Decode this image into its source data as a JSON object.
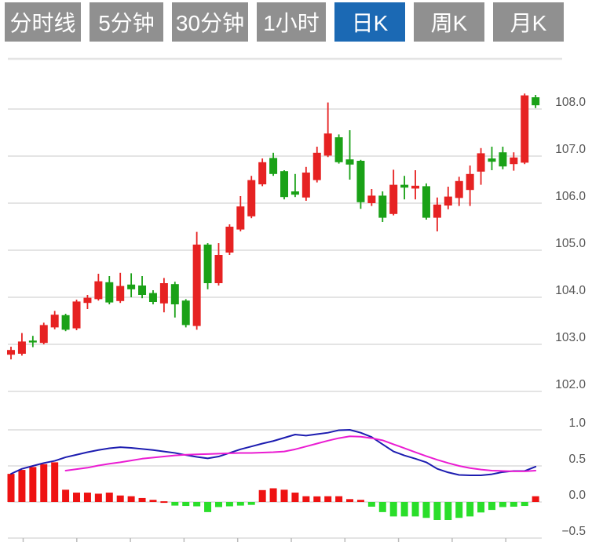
{
  "tabs": {
    "active_bg": "#1b69b4",
    "inactive_bg": "#909090",
    "text_color": "#ffffff",
    "items": [
      {
        "label": "分时线",
        "name": "tab-timeshare",
        "active": false,
        "width": 97
      },
      {
        "label": "5分钟",
        "name": "tab-5min",
        "active": false,
        "width": 94
      },
      {
        "label": "30分钟",
        "name": "tab-30min",
        "active": false,
        "width": 97
      },
      {
        "label": "1小时",
        "name": "tab-1hour",
        "active": false,
        "width": 88
      },
      {
        "label": "日K",
        "name": "tab-daily-k",
        "active": true,
        "width": 90
      },
      {
        "label": "周K",
        "name": "tab-weekly-k",
        "active": false,
        "width": 90
      },
      {
        "label": "月K",
        "name": "tab-monthly-k",
        "active": false,
        "width": 90
      }
    ]
  },
  "chart_data": {
    "type": "candlestick",
    "panels": [
      "price",
      "macd"
    ],
    "grid": true,
    "legend": "none",
    "axis_side": "right",
    "colors": {
      "up": "#e62222",
      "down": "#1aa117",
      "hist_up": "#ee1212",
      "hist_down": "#2ade2a",
      "dif_line": "#1c1cb0",
      "dea_line": "#ea1cd2",
      "grid_line": "#dcdcdc",
      "axis_label": "#555555"
    },
    "price_axis": {
      "min": 101.9,
      "max": 109.1,
      "tick_values": [
        108.0,
        107.0,
        106.0,
        105.0,
        104.0,
        103.0,
        102.0
      ],
      "tick_labels": [
        "108.0",
        "107.0",
        "106.0",
        "105.0",
        "104.0",
        "103.0",
        "102.0"
      ]
    },
    "macd_axis": {
      "min": -0.5,
      "max": 1.0,
      "tick_values": [
        1.0,
        0.5,
        0.0,
        -0.5
      ],
      "tick_labels": [
        "1.0",
        "0.5",
        "0.0",
        "−0.5"
      ]
    },
    "x_axis": {
      "labels_visible": false,
      "tick_count": 10
    },
    "candles_ohlc": [
      [
        102.78,
        102.95,
        102.68,
        102.88
      ],
      [
        102.8,
        103.24,
        102.76,
        103.06
      ],
      [
        103.08,
        103.18,
        102.94,
        103.04
      ],
      [
        103.03,
        103.46,
        103.0,
        103.41
      ],
      [
        103.36,
        103.71,
        103.32,
        103.63
      ],
      [
        103.62,
        103.65,
        103.28,
        103.31
      ],
      [
        103.34,
        103.95,
        103.3,
        103.91
      ],
      [
        103.88,
        104.05,
        103.75,
        103.99
      ],
      [
        103.96,
        104.5,
        103.93,
        104.34
      ],
      [
        104.32,
        104.45,
        103.85,
        103.89
      ],
      [
        103.92,
        104.52,
        103.88,
        104.24
      ],
      [
        104.27,
        104.51,
        104.0,
        104.17
      ],
      [
        104.25,
        104.45,
        103.98,
        104.05
      ],
      [
        104.09,
        104.15,
        103.85,
        103.9
      ],
      [
        103.87,
        104.41,
        103.68,
        104.3
      ],
      [
        104.28,
        104.33,
        103.57,
        103.85
      ],
      [
        103.93,
        103.96,
        103.36,
        103.41
      ],
      [
        103.39,
        105.39,
        103.31,
        105.12
      ],
      [
        105.12,
        105.15,
        104.17,
        104.3
      ],
      [
        104.3,
        105.15,
        104.25,
        104.9
      ],
      [
        104.95,
        105.55,
        104.9,
        105.5
      ],
      [
        105.44,
        106.15,
        105.4,
        105.93
      ],
      [
        105.72,
        106.58,
        105.68,
        106.49
      ],
      [
        106.4,
        106.95,
        106.36,
        106.87
      ],
      [
        106.96,
        107.07,
        106.58,
        106.62
      ],
      [
        106.68,
        106.7,
        106.08,
        106.13
      ],
      [
        106.25,
        106.62,
        106.13,
        106.18
      ],
      [
        106.12,
        106.77,
        106.05,
        106.65
      ],
      [
        106.49,
        107.2,
        106.44,
        107.07
      ],
      [
        107.01,
        108.14,
        106.98,
        107.48
      ],
      [
        107.4,
        107.46,
        106.84,
        106.87
      ],
      [
        106.93,
        107.55,
        106.5,
        106.82
      ],
      [
        106.9,
        106.92,
        105.88,
        106.02
      ],
      [
        106.0,
        106.3,
        105.94,
        106.16
      ],
      [
        106.16,
        106.25,
        105.6,
        105.69
      ],
      [
        105.77,
        106.71,
        105.74,
        106.39
      ],
      [
        106.39,
        106.58,
        106.08,
        106.33
      ],
      [
        106.31,
        106.7,
        106.08,
        106.37
      ],
      [
        106.36,
        106.42,
        105.65,
        105.69
      ],
      [
        105.69,
        106.12,
        105.4,
        105.97
      ],
      [
        105.95,
        106.35,
        105.87,
        106.14
      ],
      [
        106.11,
        106.56,
        105.94,
        106.47
      ],
      [
        106.28,
        106.8,
        105.94,
        106.62
      ],
      [
        106.67,
        107.17,
        106.39,
        107.06
      ],
      [
        106.95,
        107.2,
        106.7,
        106.88
      ],
      [
        107.08,
        107.2,
        106.72,
        106.78
      ],
      [
        106.83,
        107.08,
        106.69,
        106.97
      ],
      [
        106.86,
        108.33,
        106.83,
        108.29
      ],
      [
        108.25,
        108.3,
        108.02,
        108.08
      ]
    ],
    "macd": {
      "histogram": [
        0.39,
        0.445,
        0.485,
        0.525,
        0.55,
        0.17,
        0.13,
        0.13,
        0.115,
        0.13,
        0.09,
        0.08,
        0.055,
        0.03,
        0.01,
        -0.05,
        -0.055,
        -0.06,
        -0.14,
        -0.07,
        -0.06,
        -0.05,
        -0.04,
        0.165,
        0.19,
        0.17,
        0.13,
        0.08,
        0.078,
        0.08,
        0.08,
        0.04,
        0.03,
        -0.065,
        -0.14,
        -0.2,
        -0.2,
        -0.2,
        -0.22,
        -0.25,
        -0.25,
        -0.22,
        -0.2,
        -0.145,
        -0.11,
        -0.07,
        -0.065,
        -0.055,
        0.08
      ],
      "dif": [
        0.39,
        0.46,
        0.5,
        0.54,
        0.57,
        0.62,
        0.655,
        0.69,
        0.72,
        0.745,
        0.76,
        0.75,
        0.735,
        0.72,
        0.7,
        0.68,
        0.65,
        0.625,
        0.605,
        0.63,
        0.68,
        0.73,
        0.77,
        0.81,
        0.845,
        0.89,
        0.935,
        0.92,
        0.94,
        0.96,
        0.995,
        1.0,
        0.96,
        0.9,
        0.8,
        0.7,
        0.645,
        0.6,
        0.55,
        0.46,
        0.41,
        0.375,
        0.37,
        0.37,
        0.385,
        0.415,
        0.43,
        0.43,
        0.49
      ],
      "dea": [
        null,
        null,
        null,
        null,
        null,
        0.435,
        0.455,
        0.475,
        0.505,
        0.53,
        0.55,
        0.575,
        0.6,
        0.615,
        0.63,
        0.645,
        0.655,
        0.66,
        0.665,
        0.67,
        0.675,
        0.68,
        0.68,
        0.685,
        0.69,
        0.7,
        0.73,
        0.77,
        0.81,
        0.85,
        0.885,
        0.91,
        0.905,
        0.885,
        0.855,
        0.8,
        0.745,
        0.69,
        0.635,
        0.585,
        0.54,
        0.5,
        0.47,
        0.45,
        0.435,
        0.43,
        0.425,
        0.425,
        0.435
      ]
    }
  }
}
